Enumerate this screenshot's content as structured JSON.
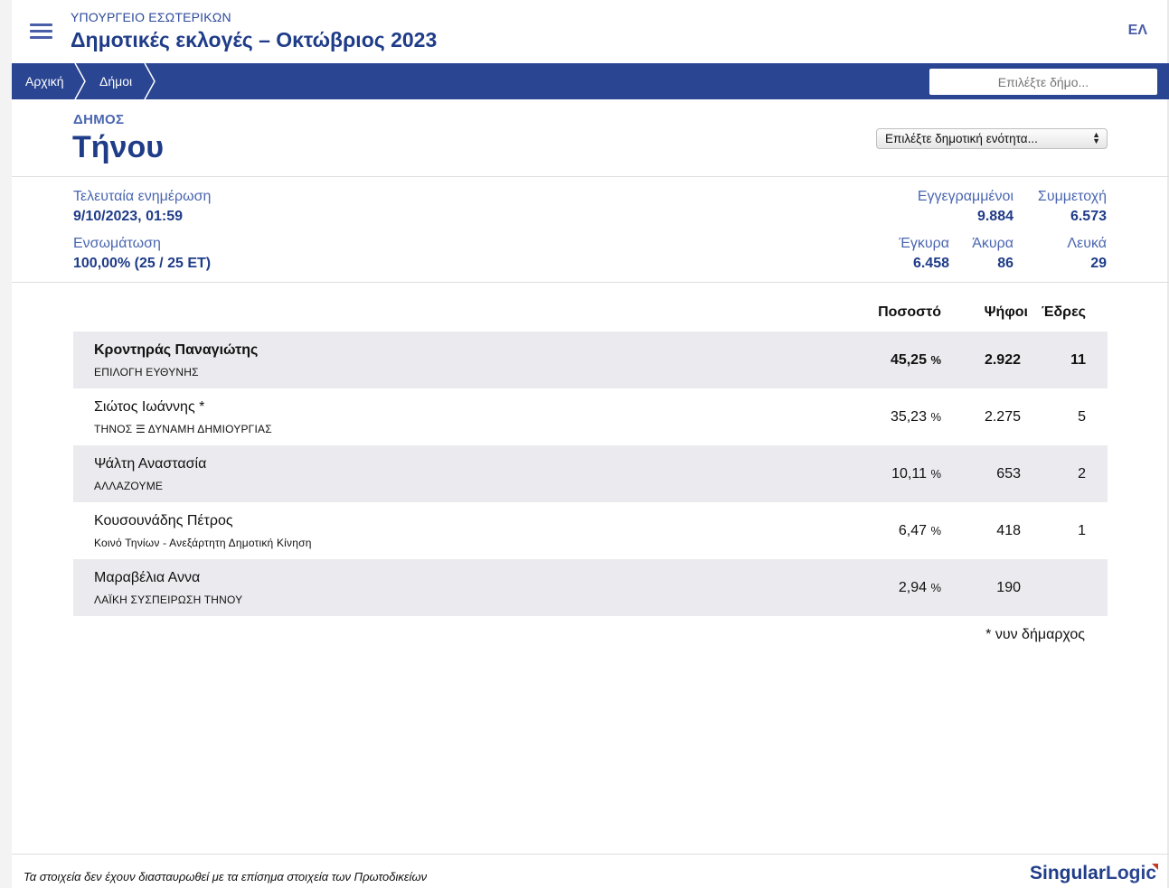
{
  "header": {
    "ministry": "ΥΠΟΥΡΓΕΙΟ ΕΣΩΤΕΡΙΚΩΝ",
    "title": "Δημοτικές εκλογές – Οκτώβριος 2023",
    "language": "ΕΛ"
  },
  "breadcrumb": {
    "home": "Αρχική",
    "municipalities": "Δήμοι",
    "search_placeholder": "Επιλέξτε δήμο..."
  },
  "municipality": {
    "label": "ΔΗΜΟΣ",
    "name": "Τήνου",
    "unit_select": "Επιλέξτε δημοτική ενότητα..."
  },
  "stats": {
    "last_update_label": "Τελευταία ενημέρωση",
    "last_update_value": "9/10/2023, 01:59",
    "integration_label": "Ενσωμάτωση",
    "integration_value": "100,00% (25 / 25 ΕΤ)",
    "registered_label": "Εγγεγραμμένοι",
    "registered_value": "9.884",
    "turnout_label": "Συμμετοχή",
    "turnout_value": "6.573",
    "valid_label": "Έγκυρα",
    "valid_value": "6.458",
    "invalid_label": "Άκυρα",
    "invalid_value": "86",
    "blank_label": "Λευκά",
    "blank_value": "29"
  },
  "results": {
    "columns": {
      "percentage": "Ποσοστό",
      "votes": "Ψήφοι",
      "seats": "Έδρες"
    },
    "percent_sign": "%",
    "rows": [
      {
        "name": "Κροντηράς Παναγιώτης",
        "party": "ΕΠΙΛΟΓΗ ΕΥΘΥΝΗΣ",
        "percentage": "45,25",
        "votes": "2.922",
        "seats": "11"
      },
      {
        "name": "Σιώτος Ιωάννης *",
        "party": "ΤΗΝΟΣ ☰ ΔΥΝΑΜΗ ΔΗΜΙΟΥΡΓΙΑΣ",
        "percentage": "35,23",
        "votes": "2.275",
        "seats": "5"
      },
      {
        "name": "Ψάλτη Αναστασία",
        "party": "ΑΛΛΑΖΟΥΜΕ",
        "percentage": "10,11",
        "votes": "653",
        "seats": "2"
      },
      {
        "name": "Κουσουνάδης Πέτρος",
        "party": "Κοινό Τηνίων - Ανεξάρτητη Δημοτική Κίνηση",
        "percentage": "6,47",
        "votes": "418",
        "seats": "1"
      },
      {
        "name": "Μαραβέλια Αννα",
        "party": "ΛΑΪΚΗ ΣΥΣΠΕΙΡΩΣΗ ΤΗΝΟΥ",
        "percentage": "2,94",
        "votes": "190",
        "seats": ""
      }
    ],
    "footnote": "* νυν δήμαρχος"
  },
  "footer": {
    "disclaimer": "Τα στοιχεία δεν έχουν διασταυρωθεί με τα επίσημα στοιχεία των Πρωτοδικείων",
    "logo_text_1": "Singular",
    "logo_text_2": "Logic"
  },
  "colors": {
    "primary": "#2a4592",
    "title": "#1f3c88",
    "label": "#4a66b0",
    "row_shade": "#ebebef"
  }
}
